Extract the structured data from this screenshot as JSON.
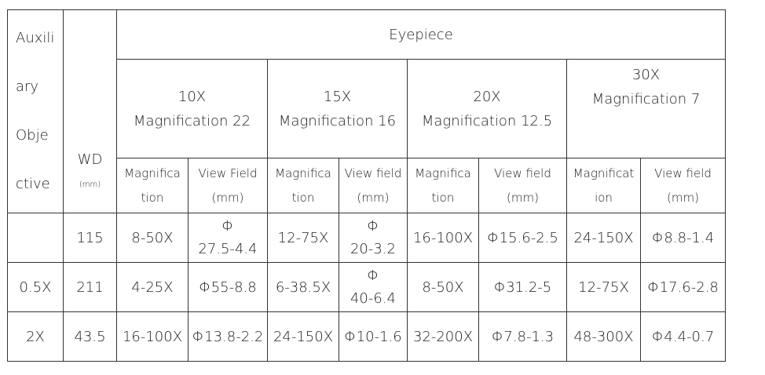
{
  "header": {
    "aux": [
      "Auxili",
      "ary",
      "Obje",
      "ctive"
    ],
    "wd": "WD",
    "wd_unit": "(mm)",
    "eyepiece": "Eyepiece"
  },
  "eyepieces": [
    {
      "name": "10X",
      "mag": "Magnification 22"
    },
    {
      "name": "15X",
      "mag": "Magnification 16"
    },
    {
      "name": "20X",
      "mag": "Magnification 12.5"
    },
    {
      "name": "30X",
      "mag": "Magnification 7"
    }
  ],
  "subheaders": [
    [
      "Magnifica",
      "tion"
    ],
    [
      "View Field",
      "(mm)"
    ],
    [
      "Magnifica",
      "tion"
    ],
    [
      "View field",
      "(mm)"
    ],
    [
      "Magnifica",
      "tion"
    ],
    [
      "View field",
      "(mm)"
    ],
    [
      "Magnificat",
      "ion"
    ],
    [
      "View field",
      "(mm)"
    ]
  ],
  "rows": [
    [
      null,
      "115",
      "8-50X",
      [
        "Φ",
        "27.5-4.4"
      ],
      "12-75X",
      [
        "Φ",
        "20-3.2"
      ],
      "16-100X",
      "Φ15.6-2.5",
      "24-150X",
      "Φ8.8-1.4"
    ],
    [
      "0.5X",
      "211",
      "4-25X",
      "Φ55-8.8",
      "6-38.5X",
      [
        "Φ",
        "40-6.4"
      ],
      "8-50X",
      "Φ31.2-5",
      "12-75X",
      "Φ17.6-2.8"
    ],
    [
      "2X",
      "43.5",
      "16-100X",
      "Φ13.8-2.2",
      "24-150X",
      "Φ10-1.6",
      "32-200X",
      "Φ7.8-1.3",
      "48-300X",
      "Φ4.4-0.7"
    ]
  ]
}
